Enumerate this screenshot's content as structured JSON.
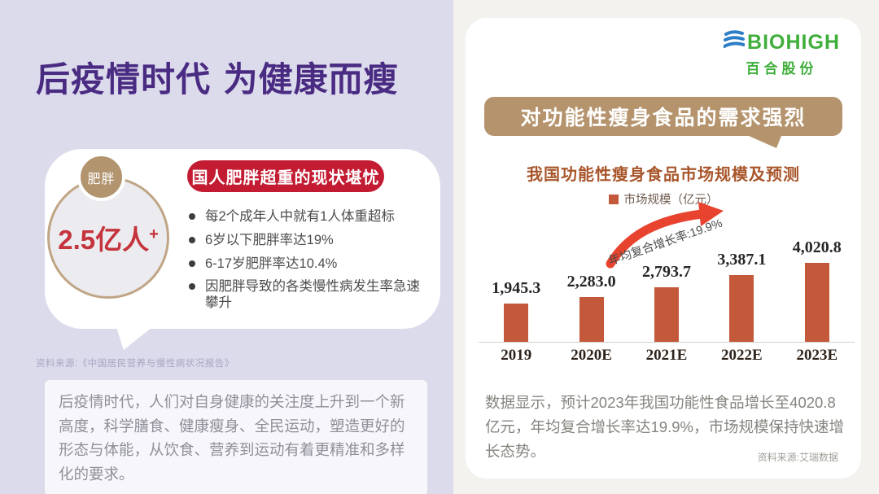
{
  "left": {
    "title": "后疫情时代 为健康而瘦",
    "bubble": {
      "circle_tag": "肥胖",
      "circle_value": "2.5亿人",
      "circle_plus": "+",
      "badge": "国人肥胖超重的现状堪忧",
      "bullets": [
        "每2个成年人中就有1人体重超标",
        "6岁以下肥胖率达19%",
        "6-17岁肥胖率达10.4%",
        "因肥胖导致的各类慢性病发生率急速攀升"
      ]
    },
    "source": "资料来源:《中国居民营养与慢性病状况报告》",
    "paragraph": "后疫情时代，人们对自身健康的关注度上升到一个新高度，科学膳食、健康瘦身、全民运动，塑造更好的形态与体能，从饮食、营养到运动有着更精准和多样化的要求。"
  },
  "right": {
    "logo": {
      "name": "BIOHIGH",
      "subtitle": "百合股份"
    },
    "banner": "对功能性瘦身食品的需求强烈",
    "paragraph": "数据显示，预计2023年我国功能性食品增长至4020.8亿元，年均复合增长率达19.9%，市场规模保持快速增长态势。",
    "source": "资料来源:艾瑞数据"
  },
  "chart_data": {
    "type": "bar",
    "title": "我国功能性瘦身食品市场规模及预测",
    "legend": "市场规模（亿元）",
    "annotation": "年均复合增长率:19.9%",
    "categories": [
      "2019",
      "2020E",
      "2021E",
      "2022E",
      "2023E"
    ],
    "values": [
      1945.3,
      2283.0,
      2793.7,
      3387.1,
      4020.8
    ],
    "value_labels": [
      "1,945.3",
      "2,283.0",
      "2,793.7",
      "3,387.1",
      "4,020.8"
    ],
    "ylim": [
      0,
      4020.8
    ],
    "bar_color": "#c4583a",
    "grid": "off",
    "legend_position": "top-center"
  },
  "colors": {
    "title_purple": "#4a2b82",
    "badge_red": "#c21b32",
    "value_red": "#c5333c",
    "banner_tan": "#b5946d",
    "bar_terracotta": "#c4583a",
    "arrow_red": "#e8432e",
    "logo_green": "#3fae3b",
    "logo_blue": "#2b7ec7",
    "left_bg": "#dcdbec",
    "right_bg": "#f3f2ee"
  }
}
